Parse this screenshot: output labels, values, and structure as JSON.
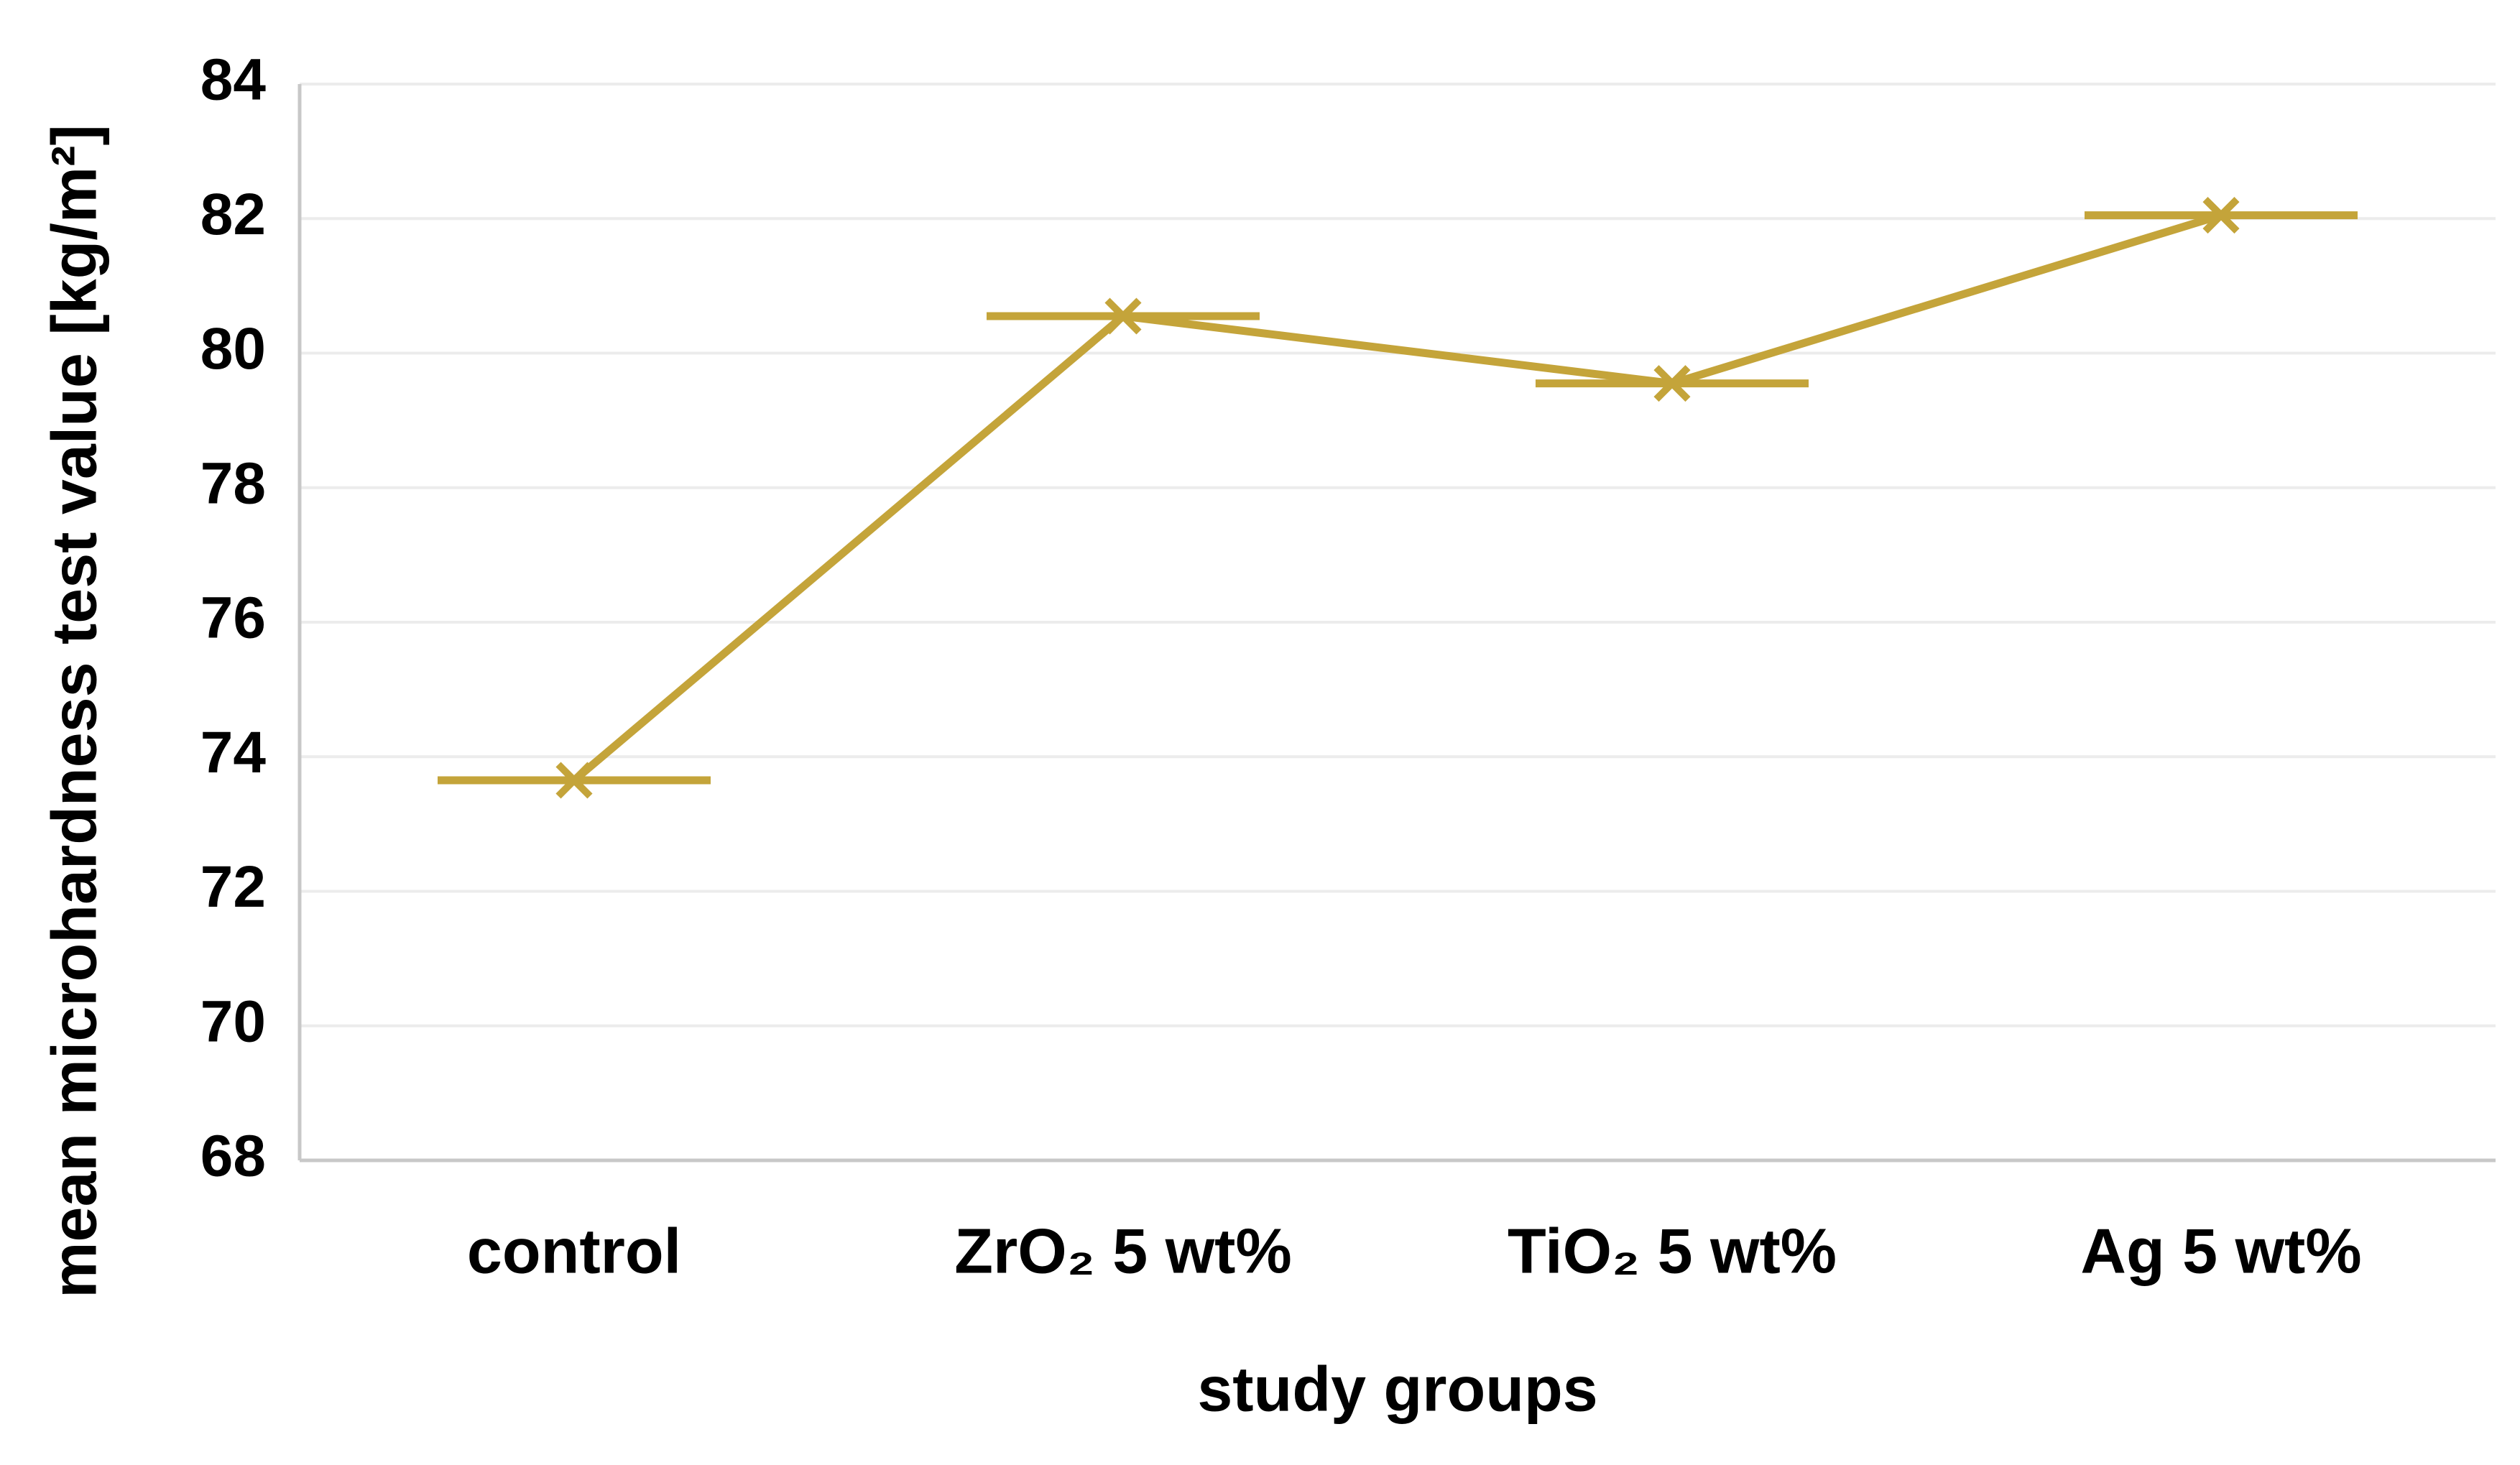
{
  "chart_data": {
    "type": "line",
    "xlabel": "study groups",
    "ylabel": "mean microhardness test value [kg/m²]",
    "categories": [
      "control",
      "ZrO₂ 5 wt%",
      "TiO₂ 5 wt%",
      "Ag 5 wt%"
    ],
    "values": [
      73.65,
      80.55,
      79.55,
      82.05
    ],
    "color": "#c4a43a",
    "ylim": [
      68,
      84
    ],
    "yticks": [
      68,
      70,
      72,
      74,
      76,
      78,
      80,
      82,
      84
    ],
    "grid": true
  }
}
